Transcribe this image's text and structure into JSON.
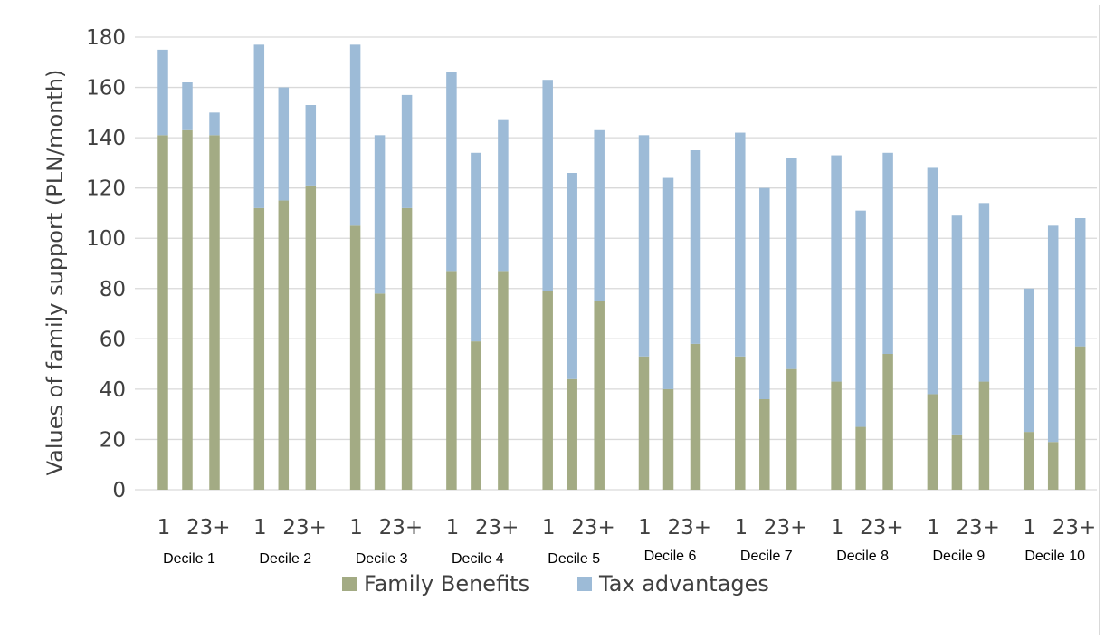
{
  "chart_data": {
    "type": "bar",
    "stacked": true,
    "title": "",
    "xlabel": "",
    "ylabel": "Values of family support (PLN/month)",
    "ylim": [
      0,
      180
    ],
    "yticks": [
      0,
      20,
      40,
      60,
      80,
      100,
      120,
      140,
      160,
      180
    ],
    "grid": true,
    "legend_position": "bottom",
    "groups": [
      "Decile 1",
      "Decile 2",
      "Decile 3",
      "Decile 4",
      "Decile 5",
      "Decile 6",
      "Decile 7",
      "Decile 8",
      "Decile 9",
      "Decile 10"
    ],
    "categories": [
      "1",
      "2",
      "3+"
    ],
    "colors": {
      "Family Benefits": "#a3ab84",
      "Tax advantages": "#9dbbd7",
      "grid": "#d9d9d9"
    },
    "series": [
      {
        "name": "Family Benefits",
        "values": [
          [
            141,
            143,
            141
          ],
          [
            112,
            115,
            121
          ],
          [
            105,
            78,
            112
          ],
          [
            87,
            59,
            87
          ],
          [
            79,
            44,
            75
          ],
          [
            53,
            40,
            58
          ],
          [
            53,
            36,
            48
          ],
          [
            43,
            25,
            54
          ],
          [
            38,
            22,
            43
          ],
          [
            23,
            19,
            57
          ]
        ]
      },
      {
        "name": "Tax advantages",
        "values": [
          [
            34,
            19,
            9
          ],
          [
            65,
            45,
            32
          ],
          [
            72,
            63,
            45
          ],
          [
            79,
            75,
            60
          ],
          [
            84,
            82,
            68
          ],
          [
            88,
            84,
            77
          ],
          [
            89,
            84,
            84
          ],
          [
            90,
            86,
            80
          ],
          [
            90,
            87,
            71
          ],
          [
            57,
            86,
            51
          ]
        ]
      }
    ]
  }
}
